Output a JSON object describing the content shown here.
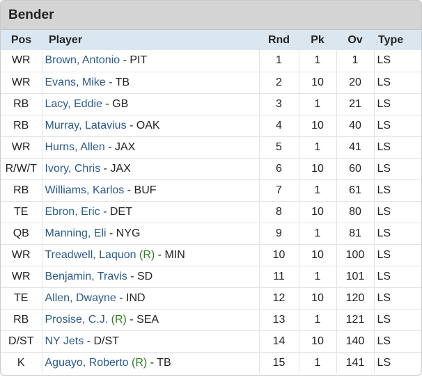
{
  "panel": {
    "title": "Bender"
  },
  "columns": {
    "pos": "Pos",
    "player": "Player",
    "rnd": "Rnd",
    "pk": "Pk",
    "ov": "Ov",
    "type": "Type"
  },
  "rows": [
    {
      "pos": "WR",
      "name": "Brown, Antonio",
      "rookie": "",
      "team": " - PIT",
      "rnd": "1",
      "pk": "1",
      "ov": "1",
      "type": "LS"
    },
    {
      "pos": "WR",
      "name": "Evans, Mike",
      "rookie": "",
      "team": " - TB",
      "rnd": "2",
      "pk": "10",
      "ov": "20",
      "type": "LS"
    },
    {
      "pos": "RB",
      "name": "Lacy, Eddie",
      "rookie": "",
      "team": " - GB",
      "rnd": "3",
      "pk": "1",
      "ov": "21",
      "type": "LS"
    },
    {
      "pos": "RB",
      "name": "Murray, Latavius",
      "rookie": "",
      "team": " - OAK",
      "rnd": "4",
      "pk": "10",
      "ov": "40",
      "type": "LS"
    },
    {
      "pos": "WR",
      "name": "Hurns, Allen",
      "rookie": "",
      "team": " - JAX",
      "rnd": "5",
      "pk": "1",
      "ov": "41",
      "type": "LS"
    },
    {
      "pos": "R/W/T",
      "name": "Ivory, Chris",
      "rookie": "",
      "team": " - JAX",
      "rnd": "6",
      "pk": "10",
      "ov": "60",
      "type": "LS"
    },
    {
      "pos": "RB",
      "name": "Williams, Karlos",
      "rookie": "",
      "team": " - BUF",
      "rnd": "7",
      "pk": "1",
      "ov": "61",
      "type": "LS"
    },
    {
      "pos": "TE",
      "name": "Ebron, Eric",
      "rookie": "",
      "team": " - DET",
      "rnd": "8",
      "pk": "10",
      "ov": "80",
      "type": "LS"
    },
    {
      "pos": "QB",
      "name": "Manning, Eli",
      "rookie": "",
      "team": " - NYG",
      "rnd": "9",
      "pk": "1",
      "ov": "81",
      "type": "LS"
    },
    {
      "pos": "WR",
      "name": "Treadwell, Laquon",
      "rookie": "(R)",
      "team": " - MIN",
      "rnd": "10",
      "pk": "10",
      "ov": "100",
      "type": "LS"
    },
    {
      "pos": "WR",
      "name": "Benjamin, Travis",
      "rookie": "",
      "team": " - SD",
      "rnd": "11",
      "pk": "1",
      "ov": "101",
      "type": "LS"
    },
    {
      "pos": "TE",
      "name": "Allen, Dwayne",
      "rookie": "",
      "team": " - IND",
      "rnd": "12",
      "pk": "10",
      "ov": "120",
      "type": "LS"
    },
    {
      "pos": "RB",
      "name": "Prosise, C.J.",
      "rookie": "(R)",
      "team": " - SEA",
      "rnd": "13",
      "pk": "1",
      "ov": "121",
      "type": "LS"
    },
    {
      "pos": "D/ST",
      "name": "NY Jets",
      "rookie": "",
      "team": " - D/ST",
      "rnd": "14",
      "pk": "10",
      "ov": "140",
      "type": "LS"
    },
    {
      "pos": "K",
      "name": "Aguayo, Roberto",
      "rookie": "(R)",
      "team": " - TB",
      "rnd": "15",
      "pk": "1",
      "ov": "141",
      "type": "LS"
    }
  ]
}
